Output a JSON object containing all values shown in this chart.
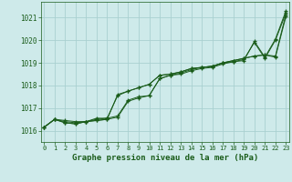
{
  "title": "Graphe pression niveau de la mer (hPa)",
  "background_color": "#ceeaea",
  "grid_color": "#aad0d0",
  "line_color": "#1a5c1a",
  "x_ticks": [
    0,
    1,
    2,
    3,
    4,
    5,
    6,
    7,
    8,
    9,
    10,
    11,
    12,
    13,
    14,
    15,
    16,
    17,
    18,
    19,
    20,
    21,
    22,
    23
  ],
  "ylim": [
    1015.5,
    1021.7
  ],
  "yticks": [
    1016,
    1017,
    1018,
    1019,
    1020,
    1021
  ],
  "series": [
    [
      1016.15,
      1016.5,
      1016.45,
      1016.4,
      1016.4,
      1016.55,
      1016.55,
      1016.65,
      1017.35,
      1017.5,
      1017.55,
      1018.3,
      1018.45,
      1018.5,
      1018.65,
      1018.75,
      1018.8,
      1018.95,
      1019.05,
      1019.1,
      1019.95,
      1019.25,
      1020.05,
      1021.3
    ],
    [
      1016.15,
      1016.5,
      1016.4,
      1016.35,
      1016.4,
      1016.5,
      1016.55,
      1017.55,
      1017.75,
      1017.9,
      1018.05,
      1018.45,
      1018.5,
      1018.6,
      1018.75,
      1018.8,
      1018.85,
      1019.0,
      1019.1,
      1019.2,
      1019.3,
      1019.35,
      1019.3,
      1021.15
    ],
    [
      1016.15,
      1016.5,
      1016.35,
      1016.3,
      1016.4,
      1016.45,
      1016.5,
      1017.6,
      1017.75,
      1017.9,
      1018.05,
      1018.45,
      1018.5,
      1018.6,
      1018.75,
      1018.8,
      1018.85,
      1019.0,
      1019.1,
      1019.2,
      1019.3,
      1019.35,
      1019.25,
      1021.05
    ],
    [
      1016.15,
      1016.5,
      1016.35,
      1016.3,
      1016.4,
      1016.45,
      1016.5,
      1016.6,
      1017.3,
      1017.45,
      1017.55,
      1018.3,
      1018.45,
      1018.55,
      1018.7,
      1018.8,
      1018.85,
      1019.0,
      1019.05,
      1019.15,
      1019.9,
      1019.2,
      1020.0,
      1021.2
    ]
  ]
}
